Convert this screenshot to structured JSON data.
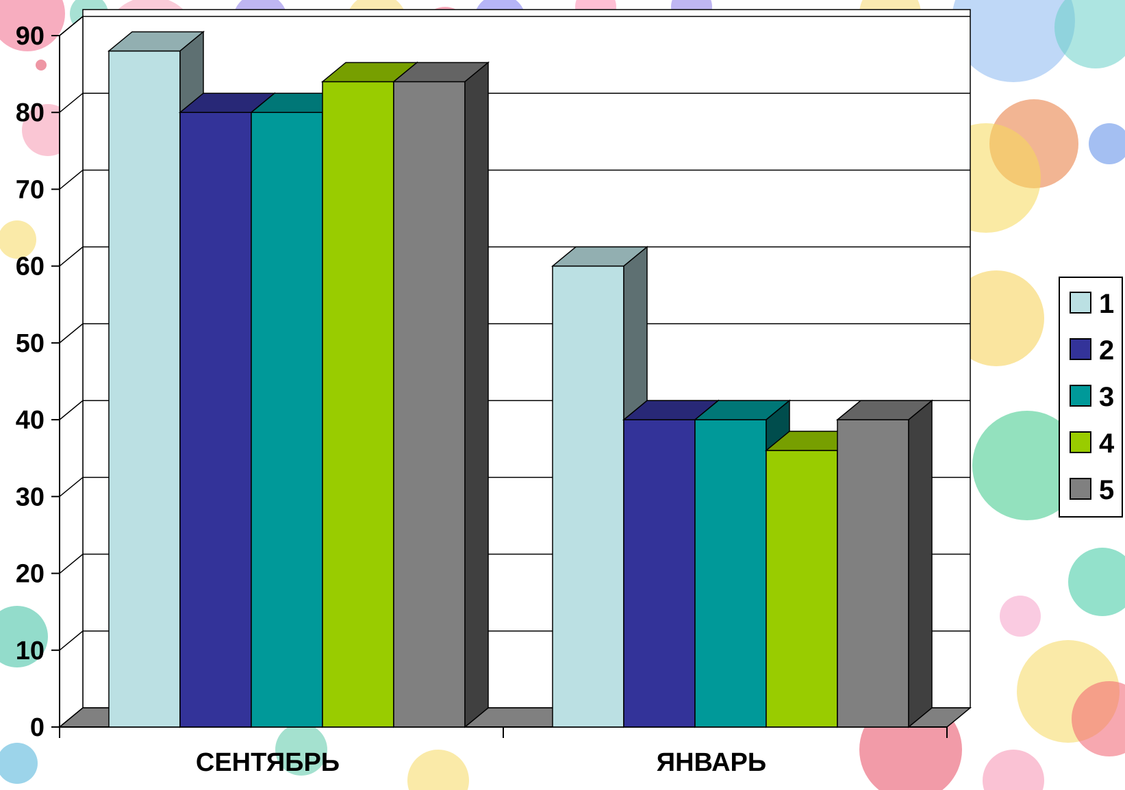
{
  "chart_data": {
    "type": "bar",
    "style": "3d-clustered-column",
    "categories": [
      "СЕНТЯБРЬ",
      "ЯНВАРЬ"
    ],
    "series": [
      {
        "name": "1",
        "values": [
          88,
          60
        ],
        "color": "#BBE0E3"
      },
      {
        "name": "2",
        "values": [
          80,
          40
        ],
        "color": "#333399"
      },
      {
        "name": "3",
        "values": [
          80,
          40
        ],
        "color": "#009999"
      },
      {
        "name": "4",
        "values": [
          84,
          36
        ],
        "color": "#99CC00"
      },
      {
        "name": "5",
        "values": [
          84,
          40
        ],
        "color": "#808080"
      }
    ],
    "ylim": [
      0,
      90
    ],
    "yticks": [
      0,
      10,
      20,
      30,
      40,
      50,
      60,
      70,
      80,
      90
    ],
    "grid": true,
    "legend_position": "right",
    "title": "",
    "xlabel": "",
    "ylabel": ""
  }
}
